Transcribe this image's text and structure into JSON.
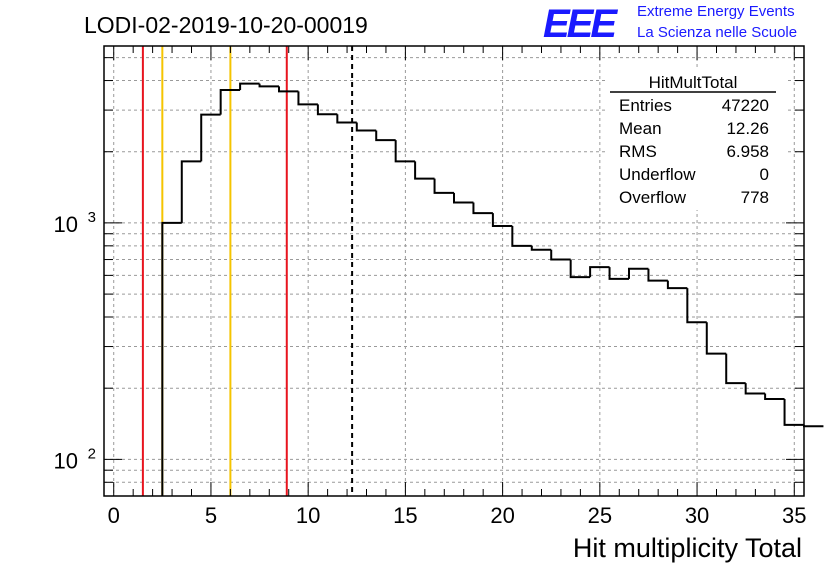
{
  "header": {
    "run_title": "LODI-02-2019-10-20-00019",
    "logo_text": "EEE",
    "org_line1": "Extreme Energy Events",
    "org_line2": "La Scienza nelle Scuole"
  },
  "stats": {
    "name": "HitMultTotal",
    "rows": [
      {
        "label": "Entries",
        "value": "47220"
      },
      {
        "label": "Mean",
        "value": "12.26"
      },
      {
        "label": "RMS",
        "value": "6.958"
      },
      {
        "label": "Underflow",
        "value": "0"
      },
      {
        "label": "Overflow",
        "value": "778"
      }
    ]
  },
  "colors": {
    "red": "#e8141e",
    "yellow": "#f5c400",
    "logo_blue": "#1a1aff"
  },
  "chart_data": {
    "type": "histogram",
    "title": "LODI-02-2019-10-20-00019",
    "xlabel": "Hit multiplicity Total",
    "ylabel": "",
    "yscale": "log",
    "xlim": [
      -0.5,
      35.5
    ],
    "ylim": [
      70,
      5600
    ],
    "bin_width": 1,
    "bin_edges_start": 2.5,
    "counts": [
      1000,
      1820,
      2870,
      3650,
      3880,
      3780,
      3600,
      3170,
      2880,
      2660,
      2460,
      2240,
      1820,
      1540,
      1340,
      1220,
      1100,
      970,
      800,
      770,
      700,
      590,
      650,
      580,
      640,
      570,
      530,
      380,
      280,
      210,
      190,
      180,
      140,
      138
    ],
    "xticks": [
      0,
      5,
      10,
      15,
      20,
      25,
      30,
      35
    ],
    "yticks_major": [
      {
        "value": 100,
        "base": "10",
        "exp": "2"
      },
      {
        "value": 1000,
        "base": "10",
        "exp": "3"
      }
    ],
    "grid": true,
    "vertical_lines": [
      {
        "x": 1.5,
        "color": "red",
        "style": "solid"
      },
      {
        "x": 2.5,
        "color": "yellow",
        "style": "solid"
      },
      {
        "x": 6.0,
        "color": "yellow",
        "style": "solid"
      },
      {
        "x": 8.9,
        "color": "red",
        "style": "solid"
      },
      {
        "x": 12.26,
        "color": "black",
        "style": "dashed"
      }
    ],
    "legend": "top-right"
  }
}
